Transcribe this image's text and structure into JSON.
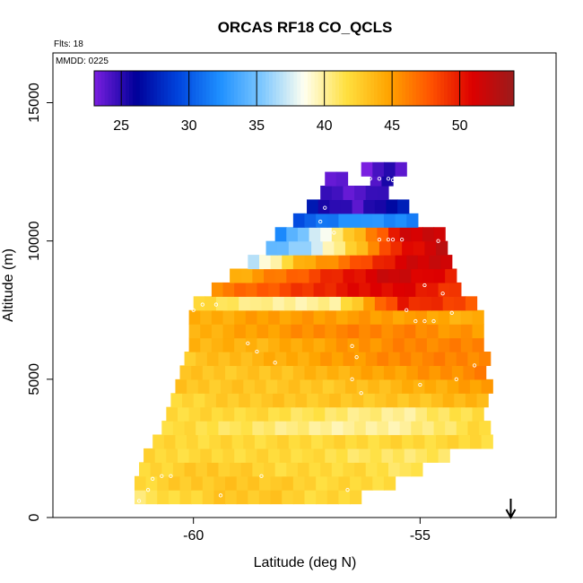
{
  "chart_data": {
    "type": "heatmap",
    "title": "ORCAS RF18 CO_QCLS",
    "flights_label": "Flts: 18",
    "date_label": "MMDD: 0225",
    "xlabel": "Latitude (deg N)",
    "ylabel": "Altitude (m)",
    "xlim": [
      -63.1,
      -52.0
    ],
    "ylim": [
      0,
      16800
    ],
    "x_ticks": [
      -60,
      -55
    ],
    "y_ticks": [
      0,
      5000,
      10000,
      15000
    ],
    "colorbar": {
      "range": [
        23,
        54
      ],
      "ticks": [
        25,
        30,
        35,
        40,
        45,
        50
      ],
      "colors": [
        "#7a1fe0",
        "#000099",
        "#0044dd",
        "#1e90ff",
        "#7ec8ff",
        "#fffff0",
        "#ffe040",
        "#ffa500",
        "#ff5500",
        "#dd0000",
        "#9b1b1b"
      ]
    },
    "grid": false,
    "arrow": {
      "x": -53.0,
      "direction": "down"
    },
    "field": {
      "x_bin_width": 0.25,
      "y_bin_height": 500,
      "rows": [
        {
          "alt": 500,
          "x0": -61.3,
          "x1": -56.3,
          "values": [
            41,
            42,
            43,
            43,
            42,
            42
          ]
        },
        {
          "alt": 1000,
          "x0": -61.3,
          "x1": -55.6,
          "values": [
            42,
            43,
            43,
            42,
            42
          ]
        },
        {
          "alt": 1500,
          "x0": -61.2,
          "x1": -55.0,
          "values": [
            42,
            43,
            42,
            42,
            41
          ]
        },
        {
          "alt": 2000,
          "x0": -61.1,
          "x1": -54.3,
          "values": [
            42,
            42,
            42,
            41,
            41
          ]
        },
        {
          "alt": 2500,
          "x0": -60.9,
          "x1": -53.5,
          "values": [
            42,
            42,
            42,
            42,
            42
          ]
        },
        {
          "alt": 3000,
          "x0": -60.7,
          "x1": -53.5,
          "values": [
            42,
            41,
            40,
            40,
            42
          ]
        },
        {
          "alt": 3500,
          "x0": -60.6,
          "x1": -53.5,
          "values": [
            42,
            42,
            41,
            40,
            42
          ]
        },
        {
          "alt": 4000,
          "x0": -60.5,
          "x1": -53.5,
          "values": [
            42,
            43,
            43,
            43,
            44
          ]
        },
        {
          "alt": 4500,
          "x0": -60.4,
          "x1": -53.5,
          "values": [
            43,
            43,
            43,
            44,
            45
          ]
        },
        {
          "alt": 5000,
          "x0": -60.3,
          "x1": -53.5,
          "values": [
            43,
            43,
            44,
            45,
            46
          ]
        },
        {
          "alt": 5500,
          "x0": -60.2,
          "x1": -53.5,
          "values": [
            43,
            44,
            45,
            46,
            46
          ]
        },
        {
          "alt": 6000,
          "x0": -60.1,
          "x1": -53.5,
          "values": [
            44,
            44,
            45,
            46,
            46
          ]
        },
        {
          "alt": 6500,
          "x0": -60.1,
          "x1": -53.5,
          "values": [
            44,
            45,
            46,
            46,
            45
          ]
        },
        {
          "alt": 7000,
          "x0": -60.1,
          "x1": -53.6,
          "values": [
            44,
            45,
            45,
            45,
            44
          ]
        },
        {
          "alt": 7500,
          "x0": -60.0,
          "x1": -53.8,
          "values": [
            42,
            40,
            40,
            50,
            48
          ]
        },
        {
          "alt": 8000,
          "x0": -59.6,
          "x1": -54.0,
          "values": [
            46,
            48,
            50,
            51,
            49
          ]
        },
        {
          "alt": 8500,
          "x0": -59.2,
          "x1": -54.1,
          "values": [
            44,
            47,
            50,
            52,
            50
          ]
        },
        {
          "alt": 9000,
          "x0": -58.8,
          "x1": -54.2,
          "values": [
            37,
            44,
            47,
            51,
            52
          ]
        },
        {
          "alt": 9500,
          "x0": -58.4,
          "x1": -54.3,
          "values": [
            34,
            37,
            43,
            50,
            52
          ]
        },
        {
          "alt": 10000,
          "x0": -58.2,
          "x1": -54.4,
          "values": [
            32,
            38,
            44,
            51,
            52
          ]
        },
        {
          "alt": 10500,
          "x0": -57.8,
          "x1": -55.1,
          "values": [
            30,
            31,
            33,
            32,
            32
          ]
        },
        {
          "alt": 11000,
          "x0": -57.5,
          "x1": -55.3,
          "values": [
            27,
            25,
            24,
            26,
            27
          ]
        },
        {
          "alt": 11500,
          "x0": -57.2,
          "x1": -55.6,
          "values": [
            25,
            24,
            24,
            24,
            25
          ]
        },
        {
          "alt": 12000,
          "x0": -57.1,
          "x1": -56.7,
          "values": [
            23,
            24
          ]
        },
        {
          "alt": 12000,
          "x0": -56.1,
          "x1": -55.6,
          "values": [
            24,
            25
          ]
        },
        {
          "alt": 12350,
          "x0": -56.3,
          "x1": -55.3,
          "values": [
            23,
            25,
            24
          ]
        }
      ]
    },
    "track_points": [
      [
        -56.5,
        12200
      ],
      [
        -56.3,
        12200
      ],
      [
        -56.1,
        12250
      ],
      [
        -55.9,
        12250
      ],
      [
        -55.7,
        12250
      ],
      [
        -55.5,
        12250
      ],
      [
        -55.3,
        12250
      ],
      [
        -57.1,
        11200
      ],
      [
        -57.2,
        10700
      ],
      [
        -56.9,
        10300
      ],
      [
        -55.9,
        10050
      ],
      [
        -55.7,
        10050
      ],
      [
        -55.6,
        10050
      ],
      [
        -55.4,
        10050
      ],
      [
        -54.9,
        8400
      ],
      [
        -54.5,
        8100
      ],
      [
        -55.3,
        7500
      ],
      [
        -55.1,
        7100
      ],
      [
        -54.9,
        7100
      ],
      [
        -54.7,
        7100
      ],
      [
        -60.0,
        7500
      ],
      [
        -59.8,
        7700
      ],
      [
        -59.5,
        7700
      ],
      [
        -58.8,
        6300
      ],
      [
        -58.6,
        6000
      ],
      [
        -58.2,
        5600
      ],
      [
        -56.5,
        6200
      ],
      [
        -56.4,
        5800
      ],
      [
        -56.5,
        5000
      ],
      [
        -56.3,
        4500
      ],
      [
        -55.0,
        4800
      ],
      [
        -54.2,
        5000
      ],
      [
        -53.8,
        5500
      ],
      [
        -53.3,
        4400
      ],
      [
        -60.9,
        1400
      ],
      [
        -60.7,
        1500
      ],
      [
        -60.5,
        1500
      ],
      [
        -61.0,
        1000
      ],
      [
        -61.2,
        600
      ],
      [
        -59.4,
        800
      ],
      [
        -56.6,
        1000
      ],
      [
        -58.5,
        1500
      ],
      [
        -57.3,
        11600
      ],
      [
        -54.6,
        10000
      ],
      [
        -54.3,
        7400
      ],
      [
        -55.6,
        12200
      ]
    ]
  }
}
